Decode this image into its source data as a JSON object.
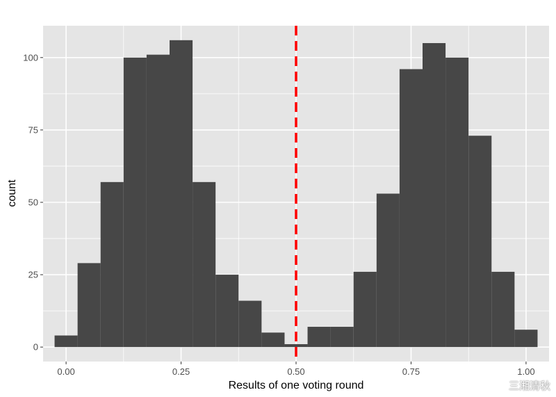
{
  "chart_data": {
    "type": "bar",
    "histogram": true,
    "bin_width": 0.05,
    "bin_centers": [
      0.0,
      0.05,
      0.1,
      0.15,
      0.2,
      0.25,
      0.3,
      0.35,
      0.4,
      0.45,
      0.5,
      0.55,
      0.6,
      0.65,
      0.7,
      0.75,
      0.8,
      0.85,
      0.9,
      0.95,
      1.0
    ],
    "values": [
      4,
      29,
      57,
      100,
      101,
      106,
      57,
      25,
      16,
      5,
      1,
      7,
      7,
      26,
      53,
      96,
      105,
      100,
      73,
      26,
      6
    ],
    "xlabel": "Results of one voting round",
    "ylabel": "count",
    "xlim": [
      -0.05,
      1.05
    ],
    "ylim": [
      -5,
      111
    ],
    "x_ticks": [
      0.0,
      0.25,
      0.5,
      0.75,
      1.0
    ],
    "x_tick_labels": [
      "0.00",
      "0.25",
      "0.50",
      "0.75",
      "1.00"
    ],
    "y_ticks": [
      0,
      25,
      50,
      75,
      100
    ],
    "y_tick_labels": [
      "0",
      "25",
      "50",
      "75",
      "100"
    ],
    "reference_line": {
      "x": 0.5,
      "style": "dashed",
      "color": "#ff0000"
    },
    "bar_color": "#474747",
    "panel_background": "#e5e5e5",
    "grid_color": "#ffffff",
    "grid": true,
    "legend": "none"
  },
  "watermark": {
    "text": "三湘清秋",
    "icon": "weibo-icon"
  }
}
